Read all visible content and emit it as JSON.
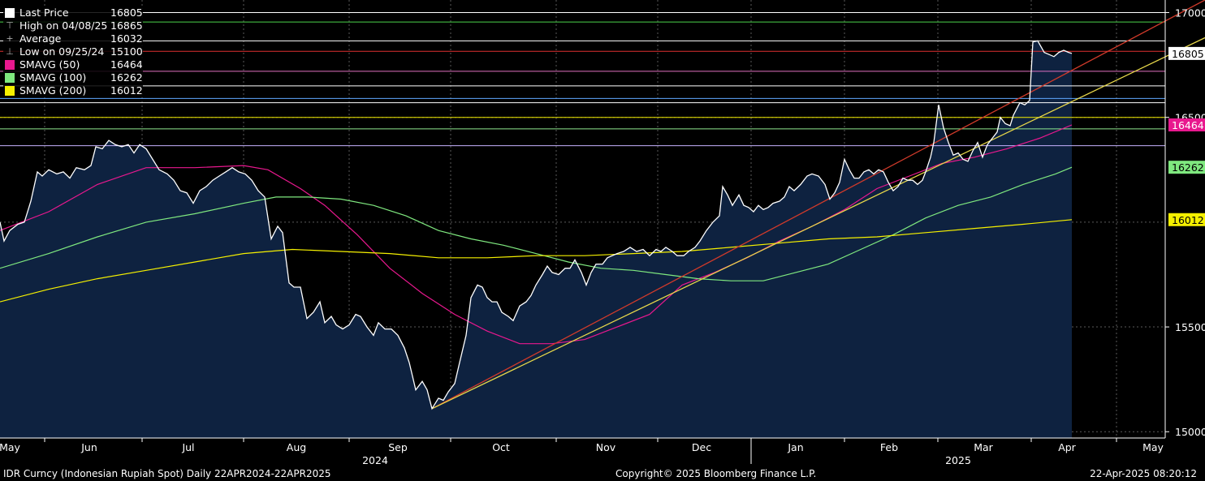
{
  "legend": {
    "items": [
      {
        "label": "Last Price",
        "value": "16805",
        "color": "#ffffff",
        "marker": "box"
      },
      {
        "label": "High on 04/08/25",
        "value": "16865",
        "color": "#aaaaaa",
        "marker": "high"
      },
      {
        "label": "Average",
        "value": "16032",
        "color": "#aaaaaa",
        "marker": "avg"
      },
      {
        "label": "Low on 09/25/24",
        "value": "15100",
        "color": "#aaaaaa",
        "marker": "low"
      },
      {
        "label": "SMAVG (50)",
        "value": "16464",
        "color": "#e8188e",
        "marker": "box"
      },
      {
        "label": "SMAVG (100)",
        "value": "16262",
        "color": "#7fe87f",
        "marker": "box"
      },
      {
        "label": "SMAVG (200)",
        "value": "16012",
        "color": "#f5f000",
        "marker": "box"
      }
    ]
  },
  "footer": {
    "left": "IDR Curncy (Indonesian Rupiah Spot)  Daily 22APR2024-22APR2025",
    "center": "Copyright© 2025 Bloomberg Finance L.P.",
    "right": "22-Apr-2025 08:20:12"
  },
  "chart_data": {
    "type": "line",
    "ylim": [
      14970,
      17060
    ],
    "y_ticks": [
      15000,
      15500,
      16500,
      17000
    ],
    "x_months": [
      "May",
      "Jun",
      "Jul",
      "Aug",
      "Sep",
      "Oct",
      "Nov",
      "Dec",
      "Jan",
      "Feb",
      "Mar",
      "Apr",
      "May"
    ],
    "x_years": [
      "2024",
      "2025"
    ],
    "price_series": {
      "name": "Last Price",
      "color": "#ffffff",
      "points": [
        [
          0,
          16000
        ],
        [
          5,
          15910
        ],
        [
          12,
          15960
        ],
        [
          22,
          15990
        ],
        [
          30,
          16000
        ],
        [
          38,
          16100
        ],
        [
          46,
          16240
        ],
        [
          52,
          16220
        ],
        [
          60,
          16250
        ],
        [
          70,
          16230
        ],
        [
          78,
          16240
        ],
        [
          86,
          16210
        ],
        [
          94,
          16260
        ],
        [
          104,
          16250
        ],
        [
          112,
          16270
        ],
        [
          118,
          16360
        ],
        [
          126,
          16350
        ],
        [
          134,
          16390
        ],
        [
          142,
          16370
        ],
        [
          150,
          16360
        ],
        [
          158,
          16370
        ],
        [
          165,
          16330
        ],
        [
          172,
          16370
        ],
        [
          180,
          16350
        ],
        [
          188,
          16300
        ],
        [
          196,
          16250
        ],
        [
          206,
          16230
        ],
        [
          214,
          16200
        ],
        [
          222,
          16150
        ],
        [
          230,
          16140
        ],
        [
          238,
          16090
        ],
        [
          246,
          16150
        ],
        [
          254,
          16170
        ],
        [
          262,
          16200
        ],
        [
          270,
          16220
        ],
        [
          278,
          16240
        ],
        [
          286,
          16260
        ],
        [
          294,
          16240
        ],
        [
          302,
          16230
        ],
        [
          310,
          16200
        ],
        [
          318,
          16150
        ],
        [
          326,
          16120
        ],
        [
          334,
          15920
        ],
        [
          342,
          15980
        ],
        [
          348,
          15950
        ],
        [
          356,
          15710
        ],
        [
          362,
          15690
        ],
        [
          370,
          15690
        ],
        [
          378,
          15540
        ],
        [
          386,
          15570
        ],
        [
          394,
          15620
        ],
        [
          400,
          15520
        ],
        [
          408,
          15550
        ],
        [
          414,
          15510
        ],
        [
          422,
          15490
        ],
        [
          430,
          15510
        ],
        [
          438,
          15560
        ],
        [
          444,
          15550
        ],
        [
          452,
          15500
        ],
        [
          460,
          15460
        ],
        [
          466,
          15520
        ],
        [
          474,
          15490
        ],
        [
          482,
          15490
        ],
        [
          490,
          15460
        ],
        [
          498,
          15400
        ],
        [
          504,
          15330
        ],
        [
          512,
          15200
        ],
        [
          520,
          15240
        ],
        [
          526,
          15200
        ],
        [
          532,
          15110
        ],
        [
          540,
          15160
        ],
        [
          546,
          15150
        ],
        [
          552,
          15190
        ],
        [
          560,
          15230
        ],
        [
          566,
          15330
        ],
        [
          574,
          15460
        ],
        [
          580,
          15640
        ],
        [
          588,
          15700
        ],
        [
          594,
          15690
        ],
        [
          600,
          15640
        ],
        [
          606,
          15620
        ],
        [
          612,
          15620
        ],
        [
          618,
          15570
        ],
        [
          626,
          15550
        ],
        [
          632,
          15530
        ],
        [
          640,
          15600
        ],
        [
          648,
          15620
        ],
        [
          654,
          15650
        ],
        [
          660,
          15700
        ],
        [
          668,
          15750
        ],
        [
          674,
          15790
        ],
        [
          680,
          15760
        ],
        [
          688,
          15750
        ],
        [
          696,
          15780
        ],
        [
          702,
          15780
        ],
        [
          708,
          15820
        ],
        [
          716,
          15760
        ],
        [
          722,
          15700
        ],
        [
          728,
          15760
        ],
        [
          734,
          15800
        ],
        [
          742,
          15800
        ],
        [
          748,
          15830
        ],
        [
          754,
          15840
        ],
        [
          760,
          15850
        ],
        [
          768,
          15860
        ],
        [
          776,
          15880
        ],
        [
          784,
          15860
        ],
        [
          792,
          15870
        ],
        [
          800,
          15840
        ],
        [
          808,
          15870
        ],
        [
          814,
          15860
        ],
        [
          820,
          15880
        ],
        [
          828,
          15860
        ],
        [
          834,
          15840
        ],
        [
          842,
          15840
        ],
        [
          848,
          15860
        ],
        [
          856,
          15880
        ],
        [
          862,
          15910
        ],
        [
          870,
          15960
        ],
        [
          878,
          16000
        ],
        [
          886,
          16030
        ],
        [
          890,
          16170
        ],
        [
          896,
          16130
        ],
        [
          902,
          16080
        ],
        [
          910,
          16130
        ],
        [
          916,
          16080
        ],
        [
          922,
          16070
        ],
        [
          928,
          16050
        ],
        [
          934,
          16080
        ],
        [
          940,
          16060
        ],
        [
          946,
          16070
        ],
        [
          952,
          16090
        ],
        [
          960,
          16100
        ],
        [
          966,
          16120
        ],
        [
          972,
          16170
        ],
        [
          978,
          16150
        ],
        [
          986,
          16180
        ],
        [
          994,
          16220
        ],
        [
          1000,
          16230
        ],
        [
          1008,
          16220
        ],
        [
          1016,
          16180
        ],
        [
          1022,
          16110
        ],
        [
          1028,
          16140
        ],
        [
          1034,
          16190
        ],
        [
          1040,
          16300
        ],
        [
          1046,
          16250
        ],
        [
          1052,
          16210
        ],
        [
          1058,
          16210
        ],
        [
          1064,
          16240
        ],
        [
          1070,
          16250
        ],
        [
          1076,
          16230
        ],
        [
          1082,
          16250
        ],
        [
          1088,
          16240
        ],
        [
          1094,
          16190
        ],
        [
          1100,
          16150
        ],
        [
          1106,
          16170
        ],
        [
          1112,
          16210
        ],
        [
          1118,
          16200
        ],
        [
          1124,
          16200
        ],
        [
          1130,
          16180
        ],
        [
          1136,
          16200
        ],
        [
          1140,
          16240
        ],
        [
          1146,
          16310
        ],
        [
          1150,
          16380
        ],
        [
          1156,
          16560
        ],
        [
          1162,
          16450
        ],
        [
          1168,
          16380
        ],
        [
          1174,
          16320
        ],
        [
          1180,
          16330
        ],
        [
          1186,
          16300
        ],
        [
          1192,
          16290
        ],
        [
          1198,
          16340
        ],
        [
          1204,
          16380
        ],
        [
          1210,
          16310
        ],
        [
          1216,
          16370
        ],
        [
          1222,
          16400
        ],
        [
          1228,
          16430
        ],
        [
          1232,
          16500
        ],
        [
          1238,
          16470
        ],
        [
          1244,
          16460
        ],
        [
          1248,
          16510
        ],
        [
          1256,
          16570
        ],
        [
          1262,
          16560
        ],
        [
          1268,
          16580
        ],
        [
          1272,
          16860
        ],
        [
          1278,
          16865
        ],
        [
          1286,
          16810
        ],
        [
          1292,
          16800
        ],
        [
          1298,
          16790
        ],
        [
          1304,
          16810
        ],
        [
          1310,
          16820
        ],
        [
          1316,
          16810
        ],
        [
          1320,
          16805
        ]
      ]
    },
    "moving_averages": [
      {
        "name": "SMAVG (50)",
        "color": "#e8188e",
        "points": [
          [
            0,
            15960
          ],
          [
            60,
            16050
          ],
          [
            120,
            16180
          ],
          [
            180,
            16260
          ],
          [
            240,
            16260
          ],
          [
            300,
            16270
          ],
          [
            330,
            16250
          ],
          [
            370,
            16160
          ],
          [
            400,
            16080
          ],
          [
            440,
            15940
          ],
          [
            480,
            15780
          ],
          [
            520,
            15660
          ],
          [
            560,
            15560
          ],
          [
            600,
            15480
          ],
          [
            640,
            15420
          ],
          [
            680,
            15420
          ],
          [
            720,
            15440
          ],
          [
            760,
            15500
          ],
          [
            800,
            15560
          ],
          [
            840,
            15700
          ],
          [
            880,
            15760
          ],
          [
            920,
            15830
          ],
          [
            960,
            15910
          ],
          [
            1000,
            15980
          ],
          [
            1040,
            16060
          ],
          [
            1080,
            16160
          ],
          [
            1120,
            16220
          ],
          [
            1160,
            16280
          ],
          [
            1200,
            16310
          ],
          [
            1240,
            16350
          ],
          [
            1280,
            16400
          ],
          [
            1320,
            16464
          ]
        ]
      },
      {
        "name": "SMAVG (100)",
        "color": "#7fe87f",
        "points": [
          [
            0,
            15780
          ],
          [
            60,
            15850
          ],
          [
            120,
            15930
          ],
          [
            180,
            16000
          ],
          [
            240,
            16040
          ],
          [
            300,
            16090
          ],
          [
            340,
            16120
          ],
          [
            380,
            16120
          ],
          [
            420,
            16110
          ],
          [
            460,
            16080
          ],
          [
            500,
            16030
          ],
          [
            540,
            15960
          ],
          [
            580,
            15920
          ],
          [
            620,
            15890
          ],
          [
            660,
            15850
          ],
          [
            700,
            15810
          ],
          [
            740,
            15780
          ],
          [
            780,
            15770
          ],
          [
            820,
            15750
          ],
          [
            860,
            15730
          ],
          [
            900,
            15720
          ],
          [
            940,
            15720
          ],
          [
            980,
            15760
          ],
          [
            1020,
            15800
          ],
          [
            1060,
            15870
          ],
          [
            1100,
            15940
          ],
          [
            1140,
            16020
          ],
          [
            1180,
            16080
          ],
          [
            1220,
            16120
          ],
          [
            1260,
            16180
          ],
          [
            1300,
            16230
          ],
          [
            1320,
            16262
          ]
        ]
      },
      {
        "name": "SMAVG (200)",
        "color": "#f5f000",
        "points": [
          [
            0,
            15620
          ],
          [
            60,
            15680
          ],
          [
            120,
            15730
          ],
          [
            180,
            15770
          ],
          [
            240,
            15810
          ],
          [
            300,
            15850
          ],
          [
            360,
            15870
          ],
          [
            420,
            15860
          ],
          [
            480,
            15850
          ],
          [
            540,
            15830
          ],
          [
            600,
            15830
          ],
          [
            660,
            15840
          ],
          [
            720,
            15840
          ],
          [
            780,
            15850
          ],
          [
            840,
            15860
          ],
          [
            900,
            15880
          ],
          [
            960,
            15900
          ],
          [
            1020,
            15920
          ],
          [
            1080,
            15930
          ],
          [
            1140,
            15950
          ],
          [
            1200,
            15970
          ],
          [
            1260,
            15990
          ],
          [
            1320,
            16012
          ]
        ]
      }
    ],
    "trendlines": [
      {
        "color": "#d03a2a",
        "points": [
          [
            532,
            15110
          ],
          [
            1484,
            17060
          ]
        ]
      },
      {
        "color": "#e8d84a",
        "points": [
          [
            532,
            15110
          ],
          [
            1484,
            16880
          ]
        ]
      }
    ],
    "hlines": [
      {
        "value": 17000,
        "color": "#ffffff"
      },
      {
        "value": 16955,
        "color": "#4bd34b"
      },
      {
        "value": 16865,
        "color": "#ffffff"
      },
      {
        "value": 16815,
        "color": "#e03030"
      },
      {
        "value": 16720,
        "color": "#e070c0"
      },
      {
        "value": 16650,
        "color": "#ffffff"
      },
      {
        "value": 16590,
        "color": "#5fa8ff"
      },
      {
        "value": 16570,
        "color": "#ffffff"
      },
      {
        "value": 16500,
        "color": "#f5f000"
      },
      {
        "value": 16445,
        "color": "#8fe88f"
      },
      {
        "value": 16365,
        "color": "#c7b3ff"
      }
    ],
    "price_tags": [
      {
        "value": "16805",
        "y": 16805,
        "bg": "#ffffff",
        "fg": "#000000"
      },
      {
        "value": "16464",
        "y": 16464,
        "bg": "#e8188e",
        "fg": "#ffffff"
      },
      {
        "value": "16262",
        "y": 16262,
        "bg": "#7fe87f",
        "fg": "#000000"
      },
      {
        "value": "16012",
        "y": 16012,
        "bg": "#f5f000",
        "fg": "#000000"
      }
    ]
  }
}
